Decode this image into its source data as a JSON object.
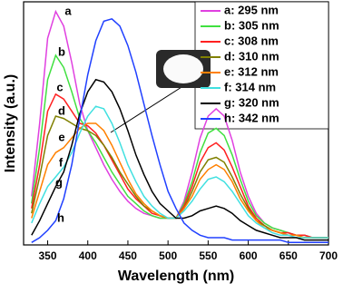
{
  "chart_data": {
    "type": "line",
    "xlabel": "Wavelength (nm)",
    "ylabel": "Intensity (a.u.)",
    "xlim": [
      320,
      700
    ],
    "xticks": [
      350,
      400,
      450,
      500,
      550,
      600,
      650,
      700
    ],
    "ylim": [
      0,
      100
    ],
    "legend": "upper right",
    "x": [
      330,
      340,
      350,
      360,
      370,
      380,
      390,
      400,
      410,
      420,
      430,
      440,
      450,
      460,
      470,
      480,
      490,
      500,
      510,
      520,
      530,
      540,
      550,
      560,
      570,
      580,
      590,
      600,
      610,
      620,
      630,
      640,
      650,
      660,
      670,
      680,
      690,
      700
    ],
    "series": [
      {
        "name": "a: 295 nm",
        "label": "a",
        "color": "#e040e0",
        "values": [
          20,
          50,
          85,
          96,
          90,
          75,
          58,
          47,
          40,
          33,
          27,
          22,
          18,
          15,
          13,
          12,
          11,
          11,
          11,
          18,
          30,
          44,
          53,
          56,
          53,
          43,
          30,
          20,
          13,
          9,
          7,
          6,
          5,
          4,
          4,
          3,
          3,
          3
        ]
      },
      {
        "name": "b: 305 nm",
        "label": "b",
        "color": "#40e040",
        "values": [
          17,
          40,
          68,
          78,
          73,
          63,
          52,
          47,
          42,
          36,
          30,
          25,
          20,
          17,
          14,
          12,
          11,
          11,
          11,
          17,
          26,
          38,
          46,
          48,
          45,
          37,
          27,
          18,
          12,
          9,
          7,
          6,
          5,
          4,
          4,
          3,
          3,
          3
        ]
      },
      {
        "name": "c: 308 nm",
        "label": "c",
        "color": "#ff2020",
        "values": [
          15,
          33,
          55,
          62,
          60,
          55,
          50,
          49,
          46,
          41,
          35,
          29,
          23,
          19,
          16,
          13,
          12,
          11,
          11,
          16,
          24,
          34,
          40,
          42,
          39,
          32,
          24,
          16,
          11,
          8,
          6,
          5,
          5,
          4,
          4,
          3,
          3,
          3
        ]
      },
      {
        "name": "d: 310 nm",
        "label": "d",
        "color": "#808000",
        "values": [
          13,
          28,
          45,
          53,
          52,
          50,
          48,
          47,
          45,
          41,
          36,
          30,
          25,
          20,
          16,
          14,
          12,
          11,
          11,
          15,
          22,
          30,
          35,
          36,
          34,
          28,
          21,
          15,
          10,
          8,
          6,
          5,
          4,
          4,
          3,
          3,
          3,
          3
        ]
      },
      {
        "name": "e: 312 nm",
        "label": "e",
        "color": "#ff8000",
        "values": [
          11,
          22,
          33,
          38,
          40,
          44,
          48,
          50,
          50,
          47,
          41,
          34,
          27,
          21,
          17,
          14,
          12,
          11,
          11,
          15,
          20,
          27,
          31,
          33,
          31,
          26,
          19,
          14,
          10,
          7,
          6,
          5,
          4,
          4,
          3,
          3,
          3,
          3
        ]
      },
      {
        "name": "f: 314 nm",
        "label": "f",
        "color": "#40e0e0",
        "values": [
          9,
          17,
          24,
          28,
          32,
          38,
          46,
          53,
          57,
          56,
          50,
          42,
          33,
          26,
          20,
          16,
          13,
          11,
          11,
          14,
          18,
          23,
          27,
          28,
          26,
          22,
          17,
          12,
          9,
          7,
          5,
          4,
          4,
          3,
          3,
          3,
          3,
          3
        ]
      },
      {
        "name": "g: 320 nm",
        "label": "g",
        "color": "#000000",
        "values": [
          4,
          10,
          17,
          24,
          30,
          41,
          54,
          63,
          68,
          67,
          63,
          56,
          47,
          37,
          29,
          22,
          17,
          14,
          11,
          11,
          12,
          14,
          15,
          16,
          15,
          13,
          10,
          8,
          6,
          5,
          4,
          3,
          3,
          3,
          2,
          2,
          2,
          2
        ]
      },
      {
        "name": "h: 342 nm",
        "label": "h",
        "color": "#2040ff",
        "values": [
          1,
          3,
          6,
          10,
          19,
          33,
          52,
          70,
          84,
          92,
          93,
          90,
          82,
          71,
          58,
          45,
          33,
          22,
          15,
          9,
          6,
          4,
          3,
          3,
          3,
          2,
          2,
          2,
          2,
          2,
          2,
          2,
          1,
          1,
          1,
          1,
          1,
          1
        ]
      }
    ]
  }
}
